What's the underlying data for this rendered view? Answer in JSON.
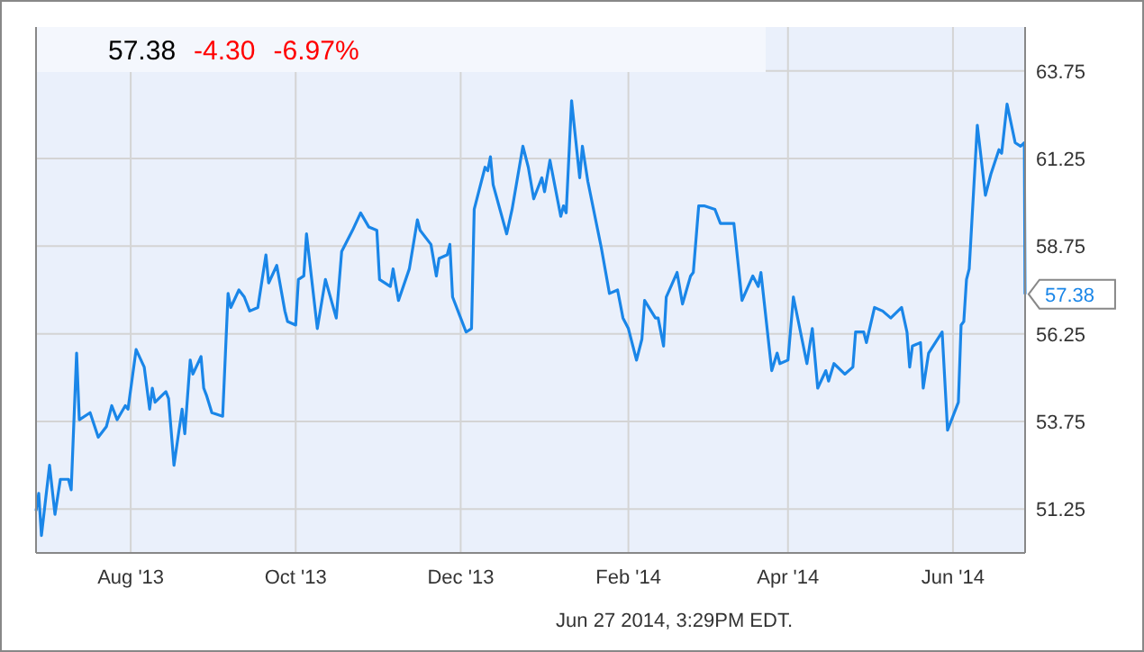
{
  "chart_data": {
    "type": "line",
    "x": [
      "2013-06-27",
      "2013-06-28",
      "2013-06-29",
      "2013-07-02",
      "2013-07-04",
      "2013-07-06",
      "2013-07-09",
      "2013-07-10",
      "2013-07-12",
      "2013-07-13",
      "2013-07-17",
      "2013-07-20",
      "2013-07-23",
      "2013-07-25",
      "2013-07-27",
      "2013-07-30",
      "2013-07-31",
      "2013-08-03",
      "2013-08-06",
      "2013-08-08",
      "2013-08-09",
      "2013-08-10",
      "2013-08-14",
      "2013-08-15",
      "2013-08-17",
      "2013-08-20",
      "2013-08-21",
      "2013-08-23",
      "2013-08-24",
      "2013-08-27",
      "2013-08-28",
      "2013-08-29",
      "2013-08-31",
      "2013-09-04",
      "2013-09-06",
      "2013-09-07",
      "2013-09-10",
      "2013-09-12",
      "2013-09-14",
      "2013-09-17",
      "2013-09-20",
      "2013-09-21",
      "2013-09-24",
      "2013-09-27",
      "2013-09-28",
      "2013-10-01",
      "2013-10-02",
      "2013-10-04",
      "2013-10-05",
      "2013-10-09",
      "2013-10-12",
      "2013-10-16",
      "2013-10-18",
      "2013-10-22",
      "2013-10-25",
      "2013-10-28",
      "2013-10-31",
      "2013-11-01",
      "2013-11-05",
      "2013-11-06",
      "2013-11-08",
      "2013-11-12",
      "2013-11-15",
      "2013-11-16",
      "2013-11-20",
      "2013-11-22",
      "2013-11-23",
      "2013-11-26",
      "2013-11-27",
      "2013-11-28",
      "2013-12-03",
      "2013-12-05",
      "2013-12-06",
      "2013-12-10",
      "2013-12-11",
      "2013-12-12",
      "2013-12-13",
      "2013-12-18",
      "2013-12-20",
      "2013-12-24",
      "2013-12-26",
      "2013-12-28",
      "2013-12-31",
      "2014-01-01",
      "2014-01-03",
      "2014-01-07",
      "2014-01-08",
      "2014-01-09",
      "2014-01-11",
      "2014-01-14",
      "2014-01-15",
      "2014-01-17",
      "2014-01-22",
      "2014-01-25",
      "2014-01-28",
      "2014-01-30",
      "2014-02-01",
      "2014-02-04",
      "2014-02-06",
      "2014-02-07",
      "2014-02-11",
      "2014-02-12",
      "2014-02-14",
      "2014-02-15",
      "2014-02-19",
      "2014-02-21",
      "2014-02-24",
      "2014-02-25",
      "2014-02-27",
      "2014-03-01",
      "2014-03-05",
      "2014-03-07",
      "2014-03-12",
      "2014-03-15",
      "2014-03-19",
      "2014-03-21",
      "2014-03-22",
      "2014-03-26",
      "2014-03-28",
      "2014-03-29",
      "2014-04-01",
      "2014-04-03",
      "2014-04-08",
      "2014-04-10",
      "2014-04-12",
      "2014-04-15",
      "2014-04-16",
      "2014-04-18",
      "2014-04-22",
      "2014-04-25",
      "2014-04-26",
      "2014-04-29",
      "2014-04-30",
      "2014-05-03",
      "2014-05-06",
      "2014-05-09",
      "2014-05-13",
      "2014-05-15",
      "2014-05-16",
      "2014-05-17",
      "2014-05-20",
      "2014-05-21",
      "2014-05-23",
      "2014-05-28",
      "2014-05-30",
      "2014-06-03",
      "2014-06-04",
      "2014-06-05",
      "2014-06-06",
      "2014-06-07",
      "2014-06-10",
      "2014-06-13",
      "2014-06-15",
      "2014-06-18",
      "2014-06-19",
      "2014-06-21",
      "2014-06-24",
      "2014-06-26",
      "2014-06-27T09:30",
      "2014-06-27T15:29"
    ],
    "series": [
      {
        "color": "#1a86e8",
        "values": [
          51.2,
          51.7,
          50.5,
          52.5,
          51.1,
          52.1,
          52.1,
          51.8,
          55.7,
          53.8,
          54.0,
          53.3,
          53.6,
          54.2,
          53.8,
          54.2,
          54.1,
          55.8,
          55.3,
          54.1,
          54.7,
          54.3,
          54.6,
          54.4,
          52.5,
          54.1,
          53.4,
          55.5,
          55.1,
          55.6,
          54.7,
          54.5,
          54.0,
          53.9,
          57.4,
          57.0,
          57.5,
          57.3,
          56.9,
          57.0,
          58.5,
          57.7,
          58.2,
          56.9,
          56.6,
          56.5,
          57.8,
          57.9,
          59.1,
          56.4,
          57.8,
          56.7,
          58.6,
          59.2,
          59.7,
          59.3,
          59.2,
          57.8,
          57.6,
          58.1,
          57.2,
          58.1,
          59.5,
          59.2,
          58.8,
          57.9,
          58.4,
          58.5,
          58.8,
          57.3,
          56.3,
          56.4,
          59.8,
          61.0,
          60.9,
          61.3,
          60.5,
          59.1,
          59.8,
          61.6,
          61.0,
          60.1,
          60.7,
          60.3,
          61.2,
          59.6,
          59.9,
          59.7,
          62.9,
          60.7,
          61.6,
          60.6,
          58.7,
          57.4,
          57.5,
          56.7,
          56.4,
          55.5,
          56.1,
          57.2,
          56.7,
          56.7,
          55.9,
          57.3,
          58.0,
          57.1,
          57.9,
          58.0,
          59.9,
          59.9,
          59.8,
          59.4,
          59.4,
          57.2,
          57.9,
          57.6,
          58.0,
          55.2,
          55.7,
          55.4,
          55.5,
          57.3,
          55.4,
          56.4,
          54.7,
          55.2,
          54.9,
          55.4,
          55.1,
          55.3,
          56.3,
          56.3,
          56.0,
          57.0,
          56.9,
          56.7,
          57.0,
          56.3,
          55.3,
          55.9,
          56.0,
          54.7,
          55.7,
          56.3,
          53.5,
          54.3,
          56.5,
          56.6,
          57.8,
          58.1,
          62.2,
          60.2,
          60.8,
          61.5,
          61.4,
          62.8,
          61.7,
          61.6,
          61.7,
          57.38
        ]
      }
    ],
    "xlim": [
      "2013-06-27",
      "2014-06-27T16:00"
    ],
    "xticks": [
      {
        "value": "2013-08-01",
        "label": "Aug '13"
      },
      {
        "value": "2013-10-01",
        "label": "Oct '13"
      },
      {
        "value": "2013-12-01",
        "label": "Dec '13"
      },
      {
        "value": "2014-02-01",
        "label": "Feb '14"
      },
      {
        "value": "2014-04-01",
        "label": "Apr '14"
      },
      {
        "value": "2014-06-01",
        "label": "Jun '14"
      }
    ],
    "ylim": [
      50,
      65
    ],
    "yticks": [
      {
        "value": 51.25,
        "label": "51.25"
      },
      {
        "value": 53.75,
        "label": "53.75"
      },
      {
        "value": 56.25,
        "label": "56.25"
      },
      {
        "value": 58.75,
        "label": "58.75"
      },
      {
        "value": 61.25,
        "label": "61.25"
      },
      {
        "value": 63.75,
        "label": "63.75"
      }
    ],
    "grid": true,
    "annotations": [
      "57.38",
      "-4.30",
      "-6.97%",
      {
        "text": "57.38",
        "x": "2014-06-27T15:29",
        "y": 57.38
      },
      "Jun 27 2014, 3:29PM EDT."
    ]
  }
}
